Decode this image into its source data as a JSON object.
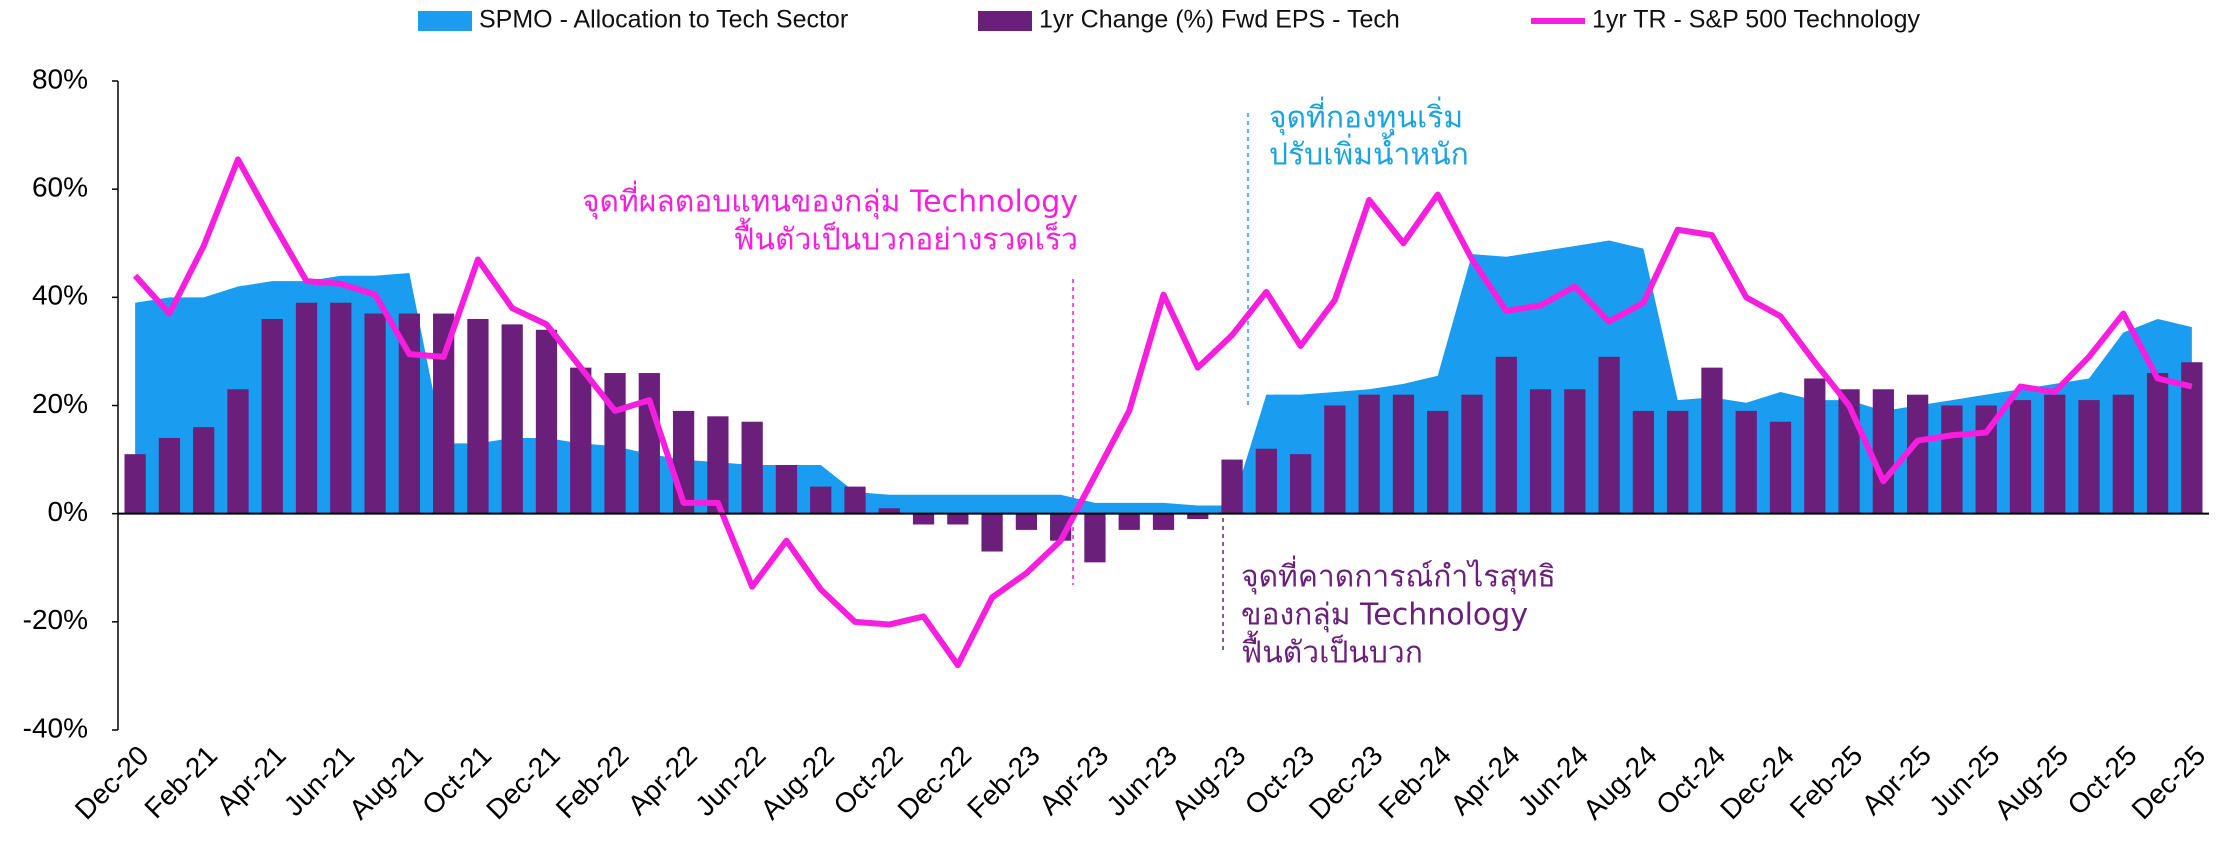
{
  "chart_data": {
    "type": "combo",
    "categories": [
      "Dec-20",
      null,
      "Feb-21",
      null,
      "Apr-21",
      null,
      "Jun-21",
      null,
      "Aug-21",
      null,
      "Oct-21",
      null,
      "Dec-21",
      null,
      "Feb-22",
      null,
      "Apr-22",
      null,
      "Jun-22",
      null,
      "Aug-22",
      null,
      "Oct-22",
      null,
      "Dec-22",
      null,
      "Feb-23",
      null,
      "Apr-23",
      null,
      "Jun-23",
      null,
      "Aug-23",
      null,
      "Oct-23",
      null,
      "Dec-23",
      null,
      "Feb-24",
      null,
      "Apr-24",
      null,
      "Jun-24",
      null,
      "Aug-24",
      null,
      "Oct-24",
      null,
      "Dec-24",
      null,
      "Feb-25",
      null,
      "Apr-25",
      null,
      "Jun-25",
      null,
      "Aug-25",
      null,
      "Oct-25",
      null,
      "Dec-25"
    ],
    "series": [
      {
        "name": "SPMO - Allocation to Tech Sector",
        "type": "area",
        "color": "#1a9cf0",
        "values": [
          39,
          40,
          40,
          42,
          43,
          43,
          44,
          44,
          44.5,
          13,
          13,
          14,
          14,
          13,
          12.5,
          11,
          10,
          9.5,
          9,
          9,
          9,
          4,
          3.5,
          3.5,
          3.5,
          3.5,
          3.5,
          3.5,
          2,
          2,
          2,
          1.5,
          1.5,
          22,
          22,
          22.5,
          23,
          24,
          25.5,
          48,
          47.5,
          48.5,
          49.5,
          50.5,
          49,
          21,
          21.5,
          20.5,
          22.5,
          21,
          21,
          19,
          20,
          21,
          22,
          23,
          24,
          25,
          33.5,
          36,
          34.5
        ]
      },
      {
        "name": "1yr Change (%) Fwd EPS - Tech",
        "type": "bar",
        "color": "#6a1f7a",
        "values": [
          11,
          14,
          16,
          23,
          36,
          39,
          39,
          37,
          37,
          37,
          36,
          35,
          34,
          27,
          26,
          26,
          19,
          18,
          17,
          9,
          5,
          5,
          1,
          -2,
          -2,
          -7,
          -3,
          -5,
          -9,
          -3,
          -3,
          -1,
          10,
          12,
          11,
          20,
          22,
          22,
          19,
          22,
          29,
          23,
          23,
          29,
          19,
          19,
          27,
          19,
          17,
          25,
          23,
          23,
          22,
          20,
          20,
          21,
          22,
          21,
          22,
          26,
          28
        ]
      },
      {
        "name": "1yr TR - S&P 500 Technology",
        "type": "line",
        "color": "#f71ede",
        "values": [
          44,
          37,
          49.5,
          65.5,
          54,
          43,
          42.5,
          40.5,
          29.5,
          29,
          47,
          38,
          35,
          27,
          19,
          21,
          2,
          2,
          -13.5,
          -5,
          -14,
          -20,
          -20.5,
          -19,
          -28,
          -15.5,
          -11,
          -5,
          7,
          19,
          40.5,
          27,
          33,
          41,
          31,
          39.5,
          58,
          50,
          59,
          47,
          37.5,
          38.5,
          42,
          35.5,
          39,
          52.5,
          51.5,
          40,
          36.5,
          28,
          20,
          6,
          13.5,
          14.5,
          15,
          23.5,
          22.5,
          29,
          37,
          25,
          23.5
        ]
      }
    ],
    "ylim": [
      -40,
      80
    ],
    "yticks": [
      {
        "value": -40,
        "label": "-40%"
      },
      {
        "value": -20,
        "label": "-20%"
      },
      {
        "value": 0,
        "label": "0%"
      },
      {
        "value": 20,
        "label": "20%"
      },
      {
        "value": 40,
        "label": "40%"
      },
      {
        "value": 60,
        "label": "60%"
      },
      {
        "value": 80,
        "label": "80%"
      }
    ],
    "legend": "top",
    "annotations": [
      {
        "lines": [
          "จุดที่ผลตอบแทนของกลุ่ม Technology",
          "ฟื้นตัวเป็นบวกอย่างรวดเร็ว"
        ],
        "color": "#f71ede"
      },
      {
        "lines": [
          "จุดที่กองทุนเริ่ม",
          "ปรับเพิ่มน้ำหนัก"
        ],
        "color": "#1aa3e0"
      },
      {
        "lines": [
          "จุดที่คาดการณ์กำไรสุทธิ",
          "ของกลุ่ม Technology",
          "ฟื้นตัวเป็นบวก"
        ],
        "color": "#6a1f7a"
      }
    ]
  }
}
